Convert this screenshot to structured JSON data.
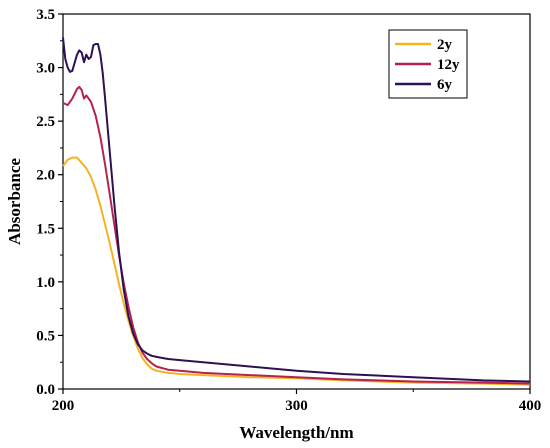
{
  "chart_data": {
    "type": "line",
    "title": "",
    "xlabel": "Wavelength/nm",
    "ylabel": "Absorbance",
    "xlim": [
      200,
      400
    ],
    "ylim": [
      0.0,
      3.5
    ],
    "x_ticks": [
      200,
      300,
      400
    ],
    "y_ticks": [
      "0.0",
      "0.5",
      "1.0",
      "1.5",
      "2.0",
      "2.5",
      "3.0",
      "3.5"
    ],
    "grid": false,
    "legend_position": "top-right",
    "series": [
      {
        "name": "2y",
        "color": "#f5b324",
        "x": [
          200,
          202,
          204,
          206,
          208,
          210,
          212,
          214,
          216,
          218,
          220,
          222,
          224,
          226,
          228,
          230,
          232,
          234,
          236,
          238,
          240,
          245,
          250,
          260,
          270,
          280,
          300,
          320,
          350,
          380,
          400
        ],
        "y": [
          2.08,
          2.14,
          2.16,
          2.16,
          2.11,
          2.06,
          1.98,
          1.86,
          1.71,
          1.54,
          1.36,
          1.17,
          0.98,
          0.8,
          0.64,
          0.5,
          0.38,
          0.29,
          0.23,
          0.19,
          0.17,
          0.15,
          0.14,
          0.13,
          0.12,
          0.11,
          0.1,
          0.08,
          0.06,
          0.05,
          0.04
        ]
      },
      {
        "name": "12y",
        "color": "#b5224f",
        "x": [
          200,
          202,
          204,
          206,
          207,
          208,
          209,
          210,
          211,
          212,
          214,
          216,
          218,
          220,
          222,
          224,
          226,
          228,
          230,
          232,
          234,
          236,
          238,
          240,
          245,
          250,
          260,
          270,
          280,
          300,
          320,
          350,
          380,
          400
        ],
        "y": [
          2.67,
          2.65,
          2.71,
          2.8,
          2.82,
          2.79,
          2.71,
          2.74,
          2.71,
          2.68,
          2.55,
          2.35,
          2.1,
          1.82,
          1.53,
          1.25,
          0.99,
          0.77,
          0.58,
          0.44,
          0.34,
          0.28,
          0.24,
          0.21,
          0.18,
          0.17,
          0.15,
          0.14,
          0.13,
          0.11,
          0.09,
          0.07,
          0.06,
          0.05
        ]
      },
      {
        "name": "6y",
        "color": "#2d1155",
        "x": [
          200,
          201,
          202,
          203,
          204,
          206,
          207,
          208,
          209,
          210,
          211,
          212,
          213,
          214,
          215,
          216,
          217,
          218,
          220,
          222,
          224,
          226,
          228,
          230,
          232,
          234,
          236,
          238,
          240,
          245,
          250,
          260,
          270,
          280,
          300,
          320,
          350,
          380,
          400
        ],
        "y": [
          3.28,
          3.08,
          3.0,
          2.96,
          2.97,
          3.12,
          3.16,
          3.14,
          3.05,
          3.12,
          3.08,
          3.1,
          3.21,
          3.22,
          3.22,
          3.12,
          2.95,
          2.72,
          2.22,
          1.72,
          1.28,
          0.93,
          0.68,
          0.52,
          0.42,
          0.36,
          0.33,
          0.31,
          0.3,
          0.28,
          0.27,
          0.25,
          0.23,
          0.21,
          0.17,
          0.14,
          0.11,
          0.08,
          0.07
        ]
      }
    ]
  }
}
